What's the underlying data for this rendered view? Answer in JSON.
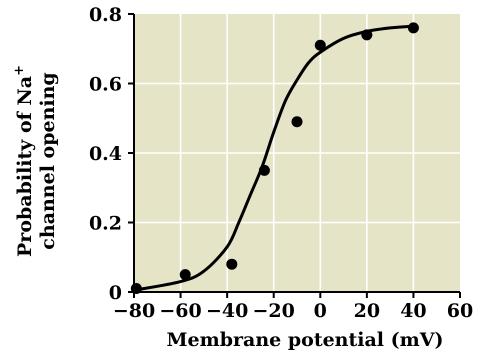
{
  "chart_data": {
    "type": "scatter",
    "title": "",
    "xlabel": "Membrane potential (mV)",
    "ylabel_line1": "Probability of Na",
    "ylabel_superscript": "+",
    "ylabel_line2": "channel opening",
    "xlim": [
      -80,
      60
    ],
    "ylim": [
      0,
      0.8
    ],
    "xticks": [
      -80,
      -60,
      -40,
      -20,
      0,
      20,
      40,
      60
    ],
    "yticks": [
      0,
      0.2,
      0.4,
      0.6,
      0.8
    ],
    "xtick_labels": [
      "−80",
      "−60",
      "−40",
      "−20",
      "0",
      "20",
      "40",
      "60"
    ],
    "ytick_labels": [
      "0",
      "0.2",
      "0.4",
      "0.6",
      "0.8"
    ],
    "grid": true,
    "colors": {
      "plot_background": "#e6e4c7",
      "grid": "#ffffff",
      "marks": "#000000"
    },
    "points": [
      {
        "x": -79,
        "y": 0.01
      },
      {
        "x": -58,
        "y": 0.05
      },
      {
        "x": -38,
        "y": 0.08
      },
      {
        "x": -24,
        "y": 0.35
      },
      {
        "x": -10,
        "y": 0.49
      },
      {
        "x": 0,
        "y": 0.71
      },
      {
        "x": 20,
        "y": 0.74
      },
      {
        "x": 40,
        "y": 0.76
      }
    ],
    "fit_curve": {
      "type": "sigmoid",
      "points": [
        {
          "x": -80,
          "y": 0.005
        },
        {
          "x": -60,
          "y": 0.03
        },
        {
          "x": -50,
          "y": 0.06
        },
        {
          "x": -40,
          "y": 0.13
        },
        {
          "x": -35,
          "y": 0.2
        },
        {
          "x": -30,
          "y": 0.28
        },
        {
          "x": -25,
          "y": 0.36
        },
        {
          "x": -20,
          "y": 0.46
        },
        {
          "x": -15,
          "y": 0.55
        },
        {
          "x": -10,
          "y": 0.61
        },
        {
          "x": -5,
          "y": 0.66
        },
        {
          "x": 0,
          "y": 0.69
        },
        {
          "x": 10,
          "y": 0.73
        },
        {
          "x": 20,
          "y": 0.75
        },
        {
          "x": 30,
          "y": 0.76
        },
        {
          "x": 40,
          "y": 0.765
        }
      ]
    }
  }
}
